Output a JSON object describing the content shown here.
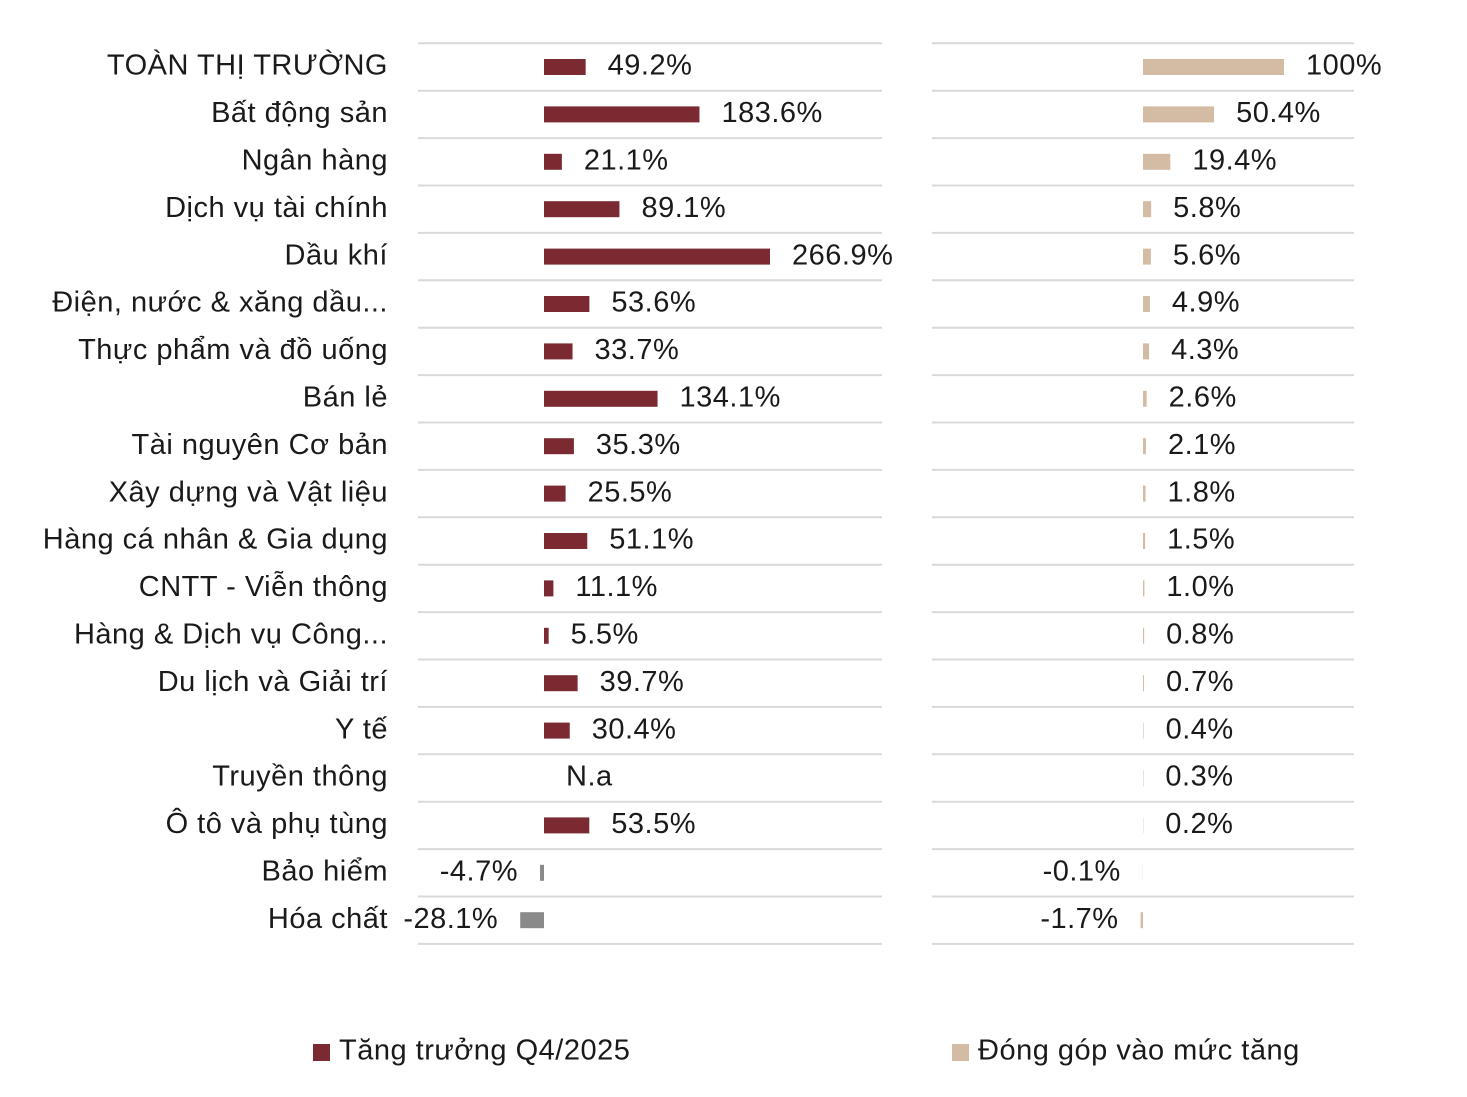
{
  "chart_data": {
    "type": "hbar-panels",
    "categories": [
      "TOÀN THỊ TRƯỜNG",
      "Bất động sản",
      "Ngân hàng",
      "Dịch vụ tài chính",
      "Dầu khí",
      "Điện, nước & xăng dầu...",
      "Thực phẩm và đồ uống",
      "Bán lẻ",
      "Tài nguyên Cơ bản",
      "Xây dựng và Vật liệu",
      "Hàng cá nhân & Gia dụng",
      "CNTT - Viễn thông",
      "Hàng & Dịch vụ Công...",
      "Du lịch và Giải trí",
      "Y tế",
      "Truyền thông",
      "Ô tô và phụ tùng",
      "Bảo hiểm",
      "Hóa chất"
    ],
    "series": [
      {
        "name": "Tăng trưởng Q4/2025",
        "color": "#7b2a32",
        "negative_color": "#8a8a8a",
        "values": [
          49.2,
          183.6,
          21.1,
          89.1,
          266.9,
          53.6,
          33.7,
          134.1,
          35.3,
          25.5,
          51.1,
          11.1,
          5.5,
          39.7,
          30.4,
          null,
          53.5,
          -4.7,
          -28.1
        ],
        "value_labels": [
          "49.2%",
          "183.6%",
          "21.1%",
          "89.1%",
          "266.9%",
          "53.6%",
          "33.7%",
          "134.1%",
          "35.3%",
          "25.5%",
          "51.1%",
          "11.1%",
          "5.5%",
          "39.7%",
          "30.4%",
          "N.a",
          "53.5%",
          "-4.7%",
          "-28.1%"
        ]
      },
      {
        "name": "Đóng góp vào mức tăng",
        "color": "#d4bca4",
        "negative_color": "#d4bca4",
        "values": [
          100,
          50.4,
          19.4,
          5.8,
          5.6,
          4.9,
          4.3,
          2.6,
          2.1,
          1.8,
          1.5,
          1.0,
          0.8,
          0.7,
          0.4,
          0.3,
          0.2,
          -0.1,
          -1.7
        ],
        "value_labels": [
          "100%",
          "50.4%",
          "19.4%",
          "5.8%",
          "5.6%",
          "4.9%",
          "4.3%",
          "2.6%",
          "2.1%",
          "1.8%",
          "1.5%",
          "1.0%",
          "0.8%",
          "0.7%",
          "0.4%",
          "0.3%",
          "0.2%",
          "-0.1%",
          "-1.7%"
        ]
      }
    ]
  }
}
